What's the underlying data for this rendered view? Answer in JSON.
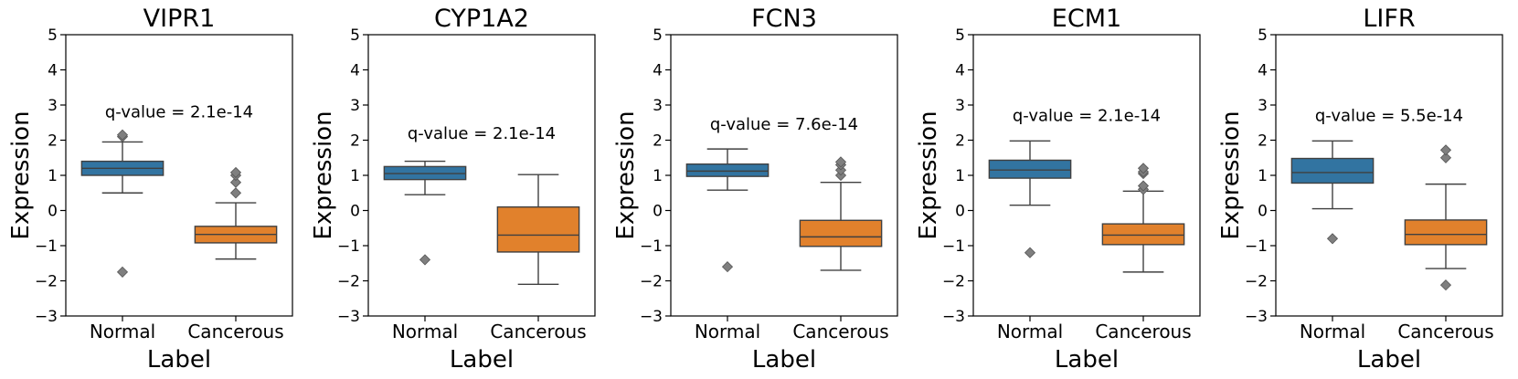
{
  "chart_data": [
    {
      "type": "box",
      "title": "VIPR1",
      "xlabel": "Label",
      "ylabel": "Expression",
      "ylim": [
        -3,
        5
      ],
      "yticks": [
        5,
        4,
        3,
        2,
        1,
        0,
        -1,
        -2,
        -3
      ],
      "categories": [
        "Normal",
        "Cancerous"
      ],
      "annotation": "q-value = 2.1e-14",
      "annotation_y": 2.8,
      "boxes": [
        {
          "label": "Normal",
          "color": "#3274a1",
          "whisker_low": 0.5,
          "q1": 1.0,
          "median": 1.2,
          "q3": 1.4,
          "whisker_high": 1.95,
          "outliers": [
            2.1,
            2.15,
            -1.75
          ]
        },
        {
          "label": "Cancerous",
          "color": "#e1812c",
          "whisker_low": -1.38,
          "q1": -0.92,
          "median": -0.68,
          "q3": -0.45,
          "whisker_high": 0.22,
          "outliers": [
            0.5,
            0.8,
            1.0,
            1.08
          ]
        }
      ]
    },
    {
      "type": "box",
      "title": "CYP1A2",
      "xlabel": "Label",
      "ylabel": "Expression",
      "ylim": [
        -3,
        5
      ],
      "yticks": [
        5,
        4,
        3,
        2,
        1,
        0,
        -1,
        -2,
        -3
      ],
      "categories": [
        "Normal",
        "Cancerous"
      ],
      "annotation": "q-value = 2.1e-14",
      "annotation_y": 2.2,
      "boxes": [
        {
          "label": "Normal",
          "color": "#3274a1",
          "whisker_low": 0.45,
          "q1": 0.88,
          "median": 1.05,
          "q3": 1.25,
          "whisker_high": 1.4,
          "outliers": [
            -1.4
          ]
        },
        {
          "label": "Cancerous",
          "color": "#e1812c",
          "whisker_low": -2.1,
          "q1": -1.18,
          "median": -0.7,
          "q3": 0.1,
          "whisker_high": 1.02,
          "outliers": []
        }
      ]
    },
    {
      "type": "box",
      "title": "FCN3",
      "xlabel": "Label",
      "ylabel": "Expression",
      "ylim": [
        -3,
        5
      ],
      "yticks": [
        5,
        4,
        3,
        2,
        1,
        0,
        -1,
        -2,
        -3
      ],
      "categories": [
        "Normal",
        "Cancerous"
      ],
      "annotation": "q-value = 7.6e-14",
      "annotation_y": 2.45,
      "boxes": [
        {
          "label": "Normal",
          "color": "#3274a1",
          "whisker_low": 0.58,
          "q1": 0.97,
          "median": 1.12,
          "q3": 1.32,
          "whisker_high": 1.75,
          "outliers": [
            -1.6
          ]
        },
        {
          "label": "Cancerous",
          "color": "#e1812c",
          "whisker_low": -1.7,
          "q1": -1.02,
          "median": -0.75,
          "q3": -0.28,
          "whisker_high": 0.8,
          "outliers": [
            1.0,
            1.15,
            1.3,
            1.38
          ]
        }
      ]
    },
    {
      "type": "box",
      "title": "ECM1",
      "xlabel": "Label",
      "ylabel": "Expression",
      "ylim": [
        -3,
        5
      ],
      "yticks": [
        5,
        4,
        3,
        2,
        1,
        0,
        -1,
        -2,
        -3
      ],
      "categories": [
        "Normal",
        "Cancerous"
      ],
      "annotation": "q-value = 2.1e-14",
      "annotation_y": 2.7,
      "boxes": [
        {
          "label": "Normal",
          "color": "#3274a1",
          "whisker_low": 0.15,
          "q1": 0.92,
          "median": 1.15,
          "q3": 1.43,
          "whisker_high": 1.98,
          "outliers": [
            -1.2
          ]
        },
        {
          "label": "Cancerous",
          "color": "#e1812c",
          "whisker_low": -1.75,
          "q1": -0.97,
          "median": -0.7,
          "q3": -0.38,
          "whisker_high": 0.55,
          "outliers": [
            0.6,
            0.7,
            1.05,
            1.1,
            1.2
          ]
        }
      ]
    },
    {
      "type": "box",
      "title": "LIFR",
      "xlabel": "Label",
      "ylabel": "Expression",
      "ylim": [
        -3,
        5
      ],
      "yticks": [
        5,
        4,
        3,
        2,
        1,
        0,
        -1,
        -2,
        -3
      ],
      "categories": [
        "Normal",
        "Cancerous"
      ],
      "annotation": "q-value = 5.5e-14",
      "annotation_y": 2.7,
      "boxes": [
        {
          "label": "Normal",
          "color": "#3274a1",
          "whisker_low": 0.05,
          "q1": 0.78,
          "median": 1.08,
          "q3": 1.48,
          "whisker_high": 1.98,
          "outliers": [
            -0.8
          ]
        },
        {
          "label": "Cancerous",
          "color": "#e1812c",
          "whisker_low": -1.65,
          "q1": -0.97,
          "median": -0.68,
          "q3": -0.27,
          "whisker_high": 0.75,
          "outliers": [
            1.5,
            1.72,
            -2.12
          ]
        }
      ]
    }
  ]
}
